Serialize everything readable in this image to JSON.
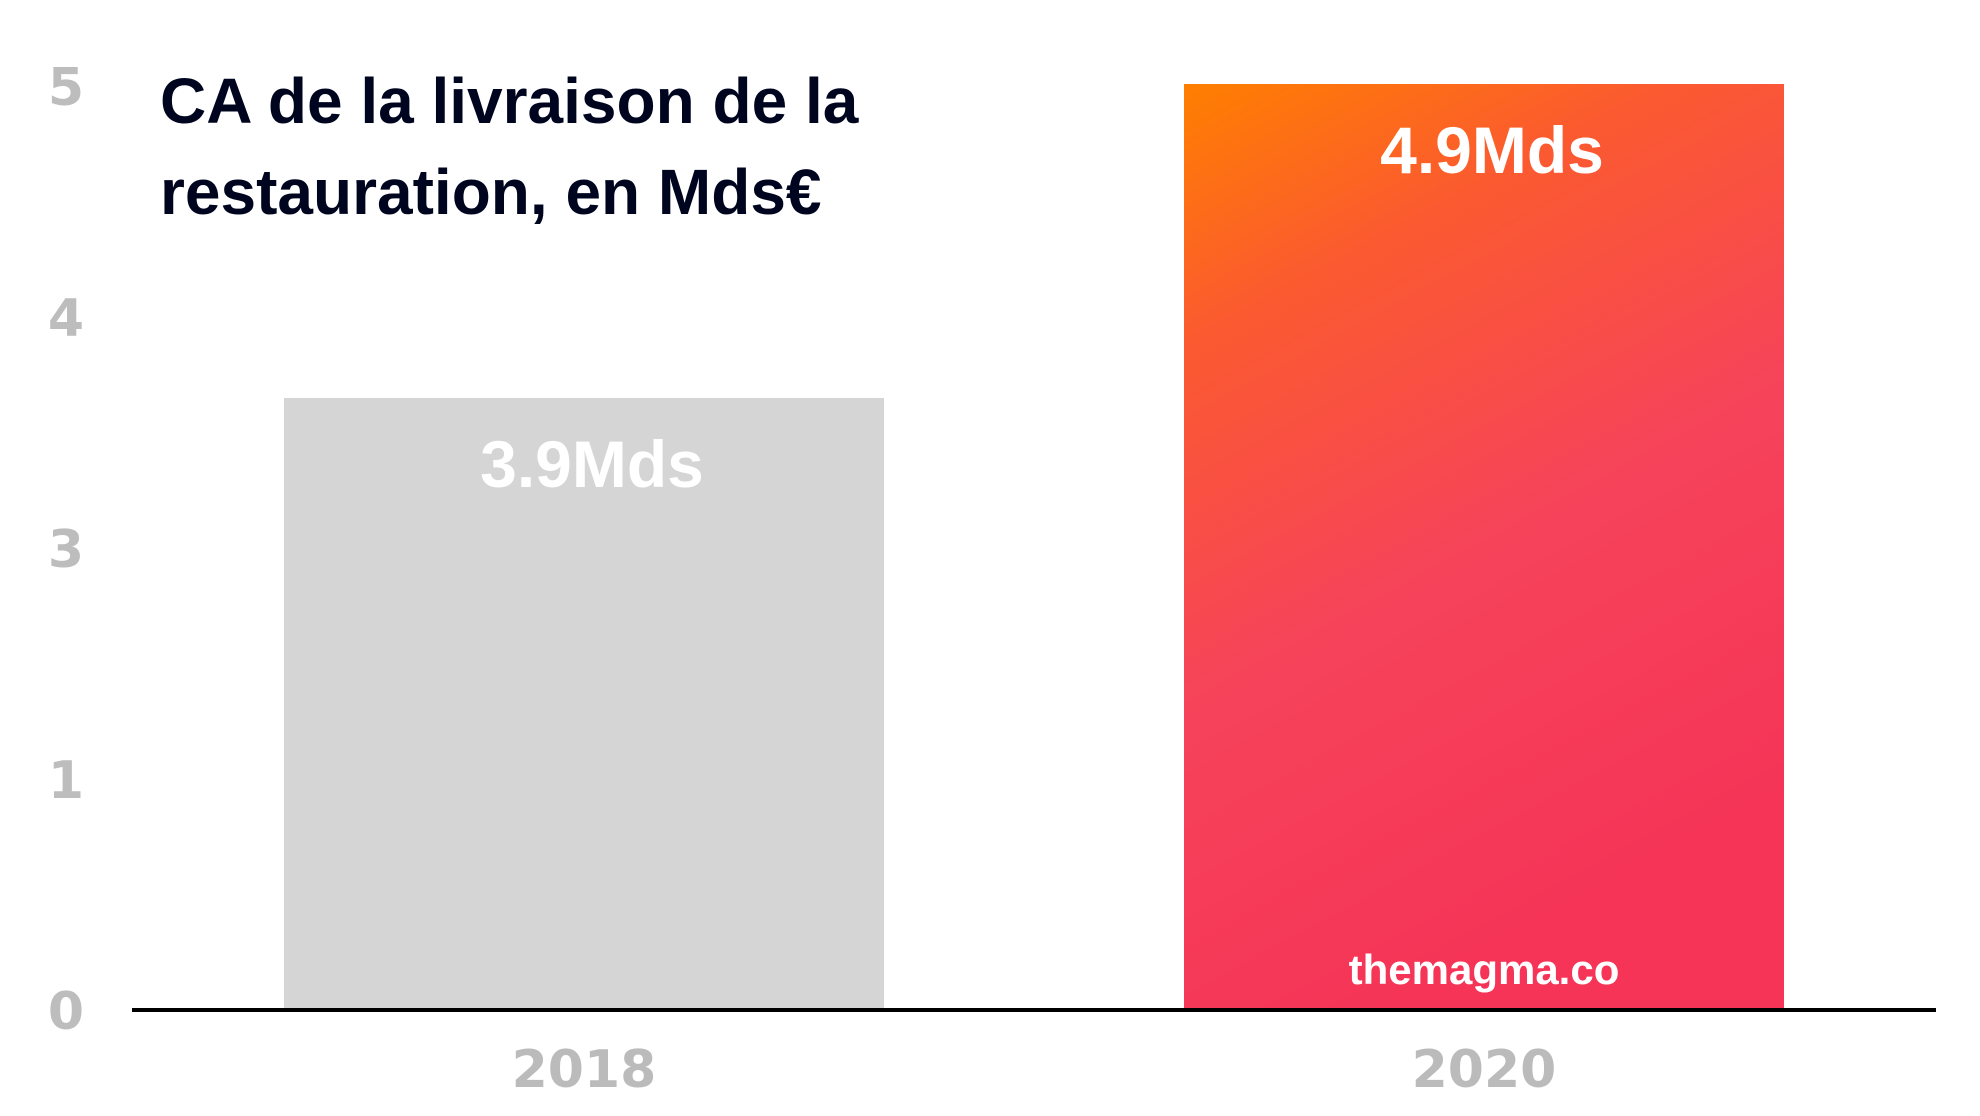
{
  "chart_data": {
    "type": "bar",
    "title": "CA de la livraison de la restauration, en Mds€",
    "title_lines": [
      "CA de la livraison de la",
      "restauration, en Mds€"
    ],
    "xlabel": "",
    "ylabel": "",
    "categories": [
      "2018",
      "2020"
    ],
    "values": [
      3.9,
      4.9
    ],
    "data_labels": [
      "3.9Mds",
      "4.9Mds"
    ],
    "unit": "Mds€",
    "ylim": [
      0,
      5
    ],
    "y_tick_labels": [
      "0",
      "1",
      "3",
      "4",
      "5"
    ],
    "grid": false,
    "legend": "none",
    "annotations": [
      "themagma.co"
    ],
    "colors": {
      "bar_2018": "#d5d5d5",
      "bar_2020_gradient": [
        "#ff7f00",
        "#fb5a30",
        "#f6435a",
        "#f53457"
      ],
      "title": "#00051f",
      "axis": "#000000",
      "tick_labels": "#bdbdbd",
      "bar_labels": "#ffffff"
    }
  }
}
